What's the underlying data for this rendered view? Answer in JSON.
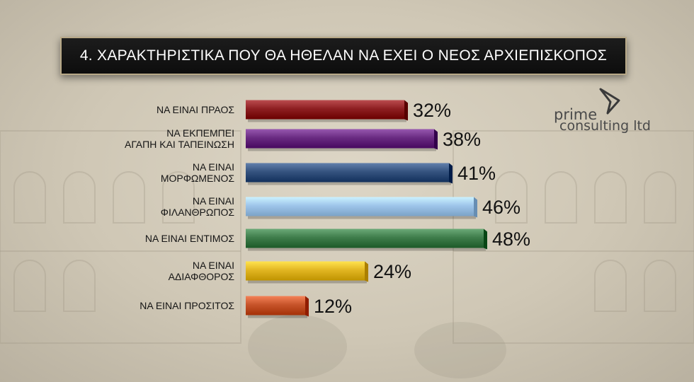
{
  "title": "4. ΧΑΡΑΚΤΗΡΙΣΤΙΚΑ ΠΟΥ ΘΑ ΗΘΕΛΑΝ ΝΑ ΕΧΕΙ Ο ΝΕΟΣ ΑΡΧΙΕΠΙΣΚΟΠΟΣ",
  "logo": {
    "line1": "prime",
    "line2": "consulting ltd",
    "icon": "prime-logo-icon"
  },
  "chart_data": {
    "type": "bar",
    "orientation": "horizontal",
    "title": "4. ΧΑΡΑΚΤΗΡΙΣΤΙΚΑ ΠΟΥ ΘΑ ΗΘΕΛΑΝ ΝΑ ΕΧΕΙ Ο ΝΕΟΣ ΑΡΧΙΕΠΙΣΚΟΠΟΣ",
    "xlim": [
      0,
      100
    ],
    "grid": false,
    "unit": "%",
    "bars": [
      {
        "label": [
          "ΝΑ ΕΙΝΑΙ ΠΡΑΟΣ"
        ],
        "value": 32,
        "value_label": "32%",
        "color": "#8e1f22"
      },
      {
        "label": [
          "ΝΑ ΕΚΠΕΜΠΕΙ",
          "ΑΓΑΠΗ ΚΑΙ ΤΑΠΕΙΝΩΣΗ"
        ],
        "value": 38,
        "value_label": "38%",
        "color": "#6a2b82"
      },
      {
        "label": [
          "ΝΑ ΕΙΝΑΙ",
          "ΜΟΡΦΩΜΕΝΟΣ"
        ],
        "value": 41,
        "value_label": "41%",
        "color": "#35537f"
      },
      {
        "label": [
          "ΝΑ ΕΙΝΑΙ",
          "ΦΙΛΑΝΘΡΩΠΟΣ"
        ],
        "value": 46,
        "value_label": "46%",
        "color": "#9ec5ea"
      },
      {
        "label": [
          "ΝΑ ΕΙΝΑΙ ΕΝΤΙΜΟΣ"
        ],
        "value": 48,
        "value_label": "48%",
        "color": "#3f7d4b"
      },
      {
        "label": [
          "ΝΑ ΕΙΝΑΙ",
          "ΑΔΙΑΦΘΟΡΟΣ"
        ],
        "value": 24,
        "value_label": "24%",
        "color": "#e2b622"
      },
      {
        "label": [
          "ΝΑ ΕΙΝΑΙ ΠΡΟΣΙΤΟΣ"
        ],
        "value": 12,
        "value_label": "12%",
        "color": "#c7542a"
      }
    ]
  }
}
